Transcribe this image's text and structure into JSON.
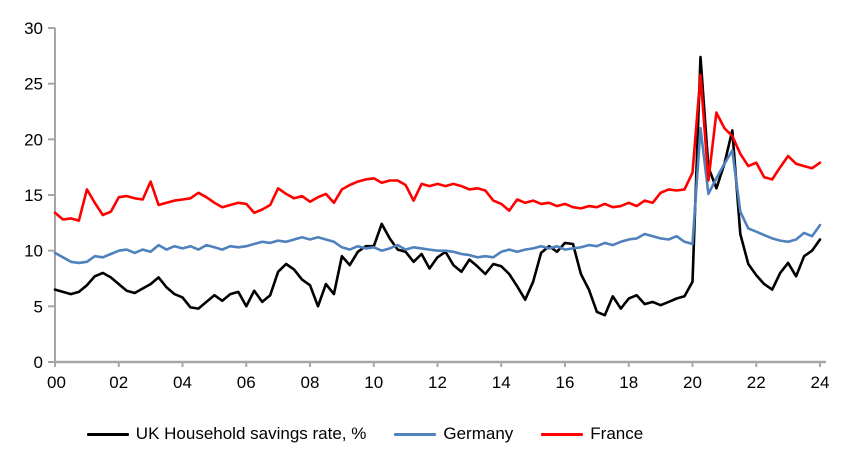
{
  "chart_data": {
    "type": "line",
    "title": "",
    "frequency": "quarterly",
    "x_start_label": "00",
    "x_tick_labels": [
      "00",
      "02",
      "04",
      "06",
      "08",
      "10",
      "12",
      "14",
      "16",
      "18",
      "20",
      "22",
      "24"
    ],
    "x_tick_step_years": 2,
    "y_ticks": [
      0,
      5,
      10,
      15,
      20,
      25,
      30
    ],
    "ylim": [
      0,
      30
    ],
    "grid": false,
    "legend_position": "bottom",
    "axis_color": "#A6A6A6",
    "tick_label_color": "#000000",
    "background_color": "#FFFFFF",
    "line_width": 2.6,
    "series": [
      {
        "name": "UK Household savings rate, %",
        "color": "#000000",
        "values": [
          6.5,
          6.3,
          6.1,
          6.3,
          6.9,
          7.7,
          8.0,
          7.6,
          7.0,
          6.4,
          6.2,
          6.6,
          7.0,
          7.6,
          6.7,
          6.1,
          5.8,
          4.9,
          4.8,
          5.4,
          6.0,
          5.5,
          6.1,
          6.3,
          5.0,
          6.4,
          5.4,
          6.0,
          8.1,
          8.8,
          8.3,
          7.4,
          6.9,
          5.0,
          7.0,
          6.1,
          9.5,
          8.7,
          9.9,
          10.4,
          10.4,
          12.4,
          11.1,
          10.1,
          9.9,
          9.0,
          9.7,
          8.4,
          9.4,
          9.9,
          8.7,
          8.1,
          9.2,
          8.6,
          7.9,
          8.8,
          8.6,
          7.9,
          6.8,
          5.6,
          7.2,
          9.8,
          10.4,
          9.9,
          10.7,
          10.6,
          7.9,
          6.5,
          4.5,
          4.2,
          5.9,
          4.8,
          5.7,
          6.0,
          5.2,
          5.4,
          5.1,
          5.4,
          5.7,
          5.9,
          7.2,
          27.4,
          17.5,
          15.6,
          17.8,
          20.8,
          11.5,
          8.8,
          7.8,
          7.0,
          6.5,
          8.0,
          8.9,
          7.7,
          9.5,
          10.0,
          11.0
        ]
      },
      {
        "name": "Germany",
        "color": "#4F81BD",
        "values": [
          9.8,
          9.4,
          9.0,
          8.9,
          9.0,
          9.5,
          9.4,
          9.7,
          10.0,
          10.1,
          9.8,
          10.1,
          9.9,
          10.5,
          10.1,
          10.4,
          10.2,
          10.4,
          10.1,
          10.5,
          10.3,
          10.1,
          10.4,
          10.3,
          10.4,
          10.6,
          10.8,
          10.7,
          10.9,
          10.8,
          11.0,
          11.2,
          11.0,
          11.2,
          11.0,
          10.8,
          10.3,
          10.1,
          10.4,
          10.2,
          10.3,
          10.0,
          10.2,
          10.5,
          10.1,
          10.3,
          10.2,
          10.1,
          10.0,
          10.0,
          9.9,
          9.7,
          9.6,
          9.4,
          9.5,
          9.4,
          9.9,
          10.1,
          9.9,
          10.1,
          10.2,
          10.4,
          10.2,
          10.4,
          10.1,
          10.2,
          10.3,
          10.5,
          10.4,
          10.7,
          10.5,
          10.8,
          11.0,
          11.1,
          11.5,
          11.3,
          11.1,
          11.0,
          11.3,
          10.8,
          10.6,
          21.0,
          15.1,
          16.5,
          17.8,
          19.0,
          13.5,
          12.0,
          11.7,
          11.4,
          11.1,
          10.9,
          10.8,
          11.0,
          11.6,
          11.3,
          12.3
        ]
      },
      {
        "name": "France",
        "color": "#FF0000",
        "values": [
          13.4,
          12.8,
          12.9,
          12.7,
          15.5,
          14.3,
          13.2,
          13.5,
          14.8,
          14.9,
          14.7,
          14.6,
          16.2,
          14.1,
          14.3,
          14.5,
          14.6,
          14.7,
          15.2,
          14.8,
          14.3,
          13.9,
          14.1,
          14.3,
          14.2,
          13.4,
          13.7,
          14.1,
          15.6,
          15.1,
          14.7,
          14.9,
          14.4,
          14.8,
          15.1,
          14.3,
          15.5,
          15.9,
          16.2,
          16.4,
          16.5,
          16.1,
          16.3,
          16.3,
          15.9,
          14.5,
          16.0,
          15.8,
          16.0,
          15.8,
          16.0,
          15.8,
          15.5,
          15.6,
          15.4,
          14.5,
          14.2,
          13.6,
          14.6,
          14.3,
          14.5,
          14.2,
          14.3,
          14.0,
          14.2,
          13.9,
          13.8,
          14.0,
          13.9,
          14.2,
          13.9,
          14.0,
          14.3,
          14.0,
          14.5,
          14.3,
          15.2,
          15.5,
          15.4,
          15.5,
          17.0,
          25.8,
          16.3,
          22.4,
          21.0,
          20.3,
          18.7,
          17.6,
          17.9,
          16.6,
          16.4,
          17.5,
          18.5,
          17.8,
          17.6,
          17.4,
          17.9
        ]
      }
    ]
  },
  "legend": {
    "uk_label": "UK Household savings rate, %",
    "germany_label": "Germany",
    "france_label": "France"
  }
}
